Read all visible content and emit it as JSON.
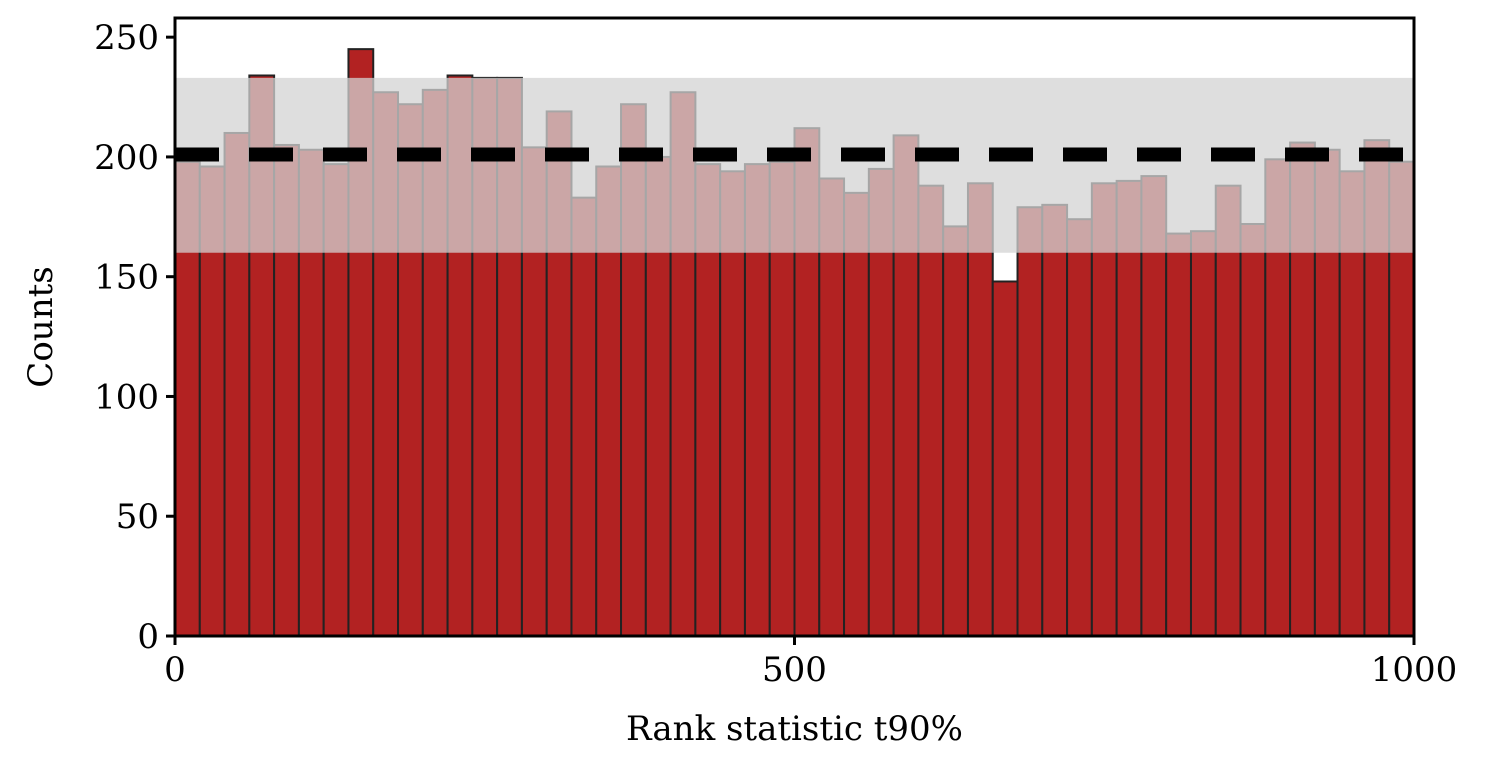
{
  "chart_data": {
    "type": "bar",
    "xlabel": "Rank statistic t90%",
    "ylabel": "Counts",
    "xlim": [
      0,
      1000
    ],
    "ylim": [
      0,
      258
    ],
    "xticks": [
      0,
      500,
      1000
    ],
    "yticks": [
      0,
      50,
      100,
      150,
      200,
      250
    ],
    "bin_width": 20,
    "bin_starts": [
      0,
      20,
      40,
      60,
      80,
      100,
      120,
      140,
      160,
      180,
      200,
      220,
      240,
      260,
      280,
      300,
      320,
      340,
      360,
      380,
      400,
      420,
      440,
      460,
      480,
      500,
      520,
      540,
      560,
      580,
      600,
      620,
      640,
      660,
      680,
      700,
      720,
      740,
      760,
      780,
      800,
      820,
      840,
      860,
      880,
      900,
      920,
      940,
      960,
      980
    ],
    "values": [
      198,
      196,
      210,
      234,
      205,
      203,
      197,
      245,
      227,
      222,
      228,
      234,
      233,
      233,
      204,
      219,
      183,
      196,
      222,
      200,
      227,
      197,
      194,
      197,
      198,
      212,
      191,
      185,
      195,
      209,
      188,
      171,
      189,
      148,
      179,
      180,
      174,
      189,
      190,
      192,
      168,
      169,
      188,
      172,
      199,
      206,
      203,
      194,
      207,
      198
    ],
    "expected_mean": 201,
    "band": [
      160,
      233
    ],
    "colors": {
      "bar_fill": "#b22222",
      "bar_edge": "#222222",
      "band": "#d3d3d3",
      "mean_line": "#000000"
    }
  }
}
